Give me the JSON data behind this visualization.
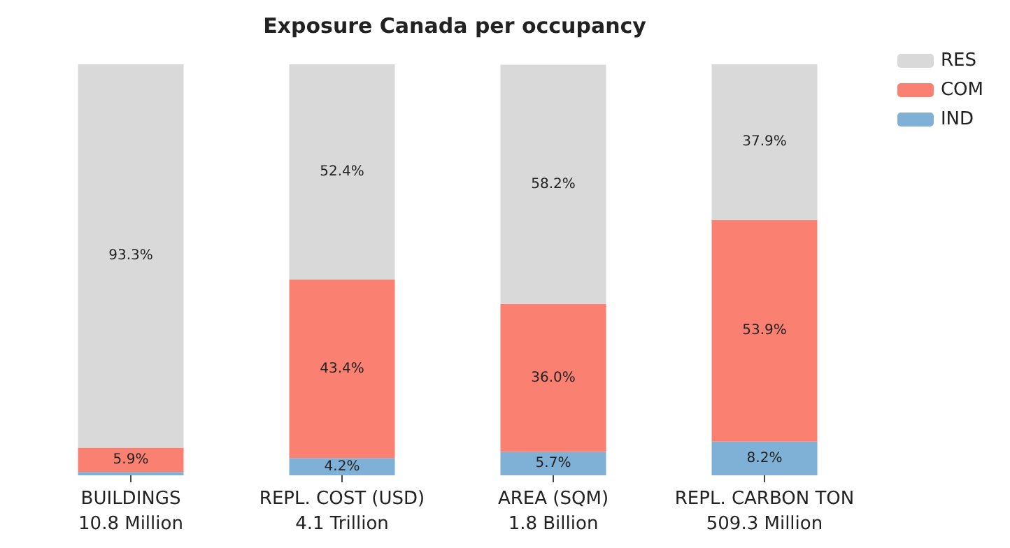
{
  "chart_data": {
    "type": "bar",
    "title": "Exposure Canada per occupancy",
    "stacked": true,
    "categories": [
      "BUILDINGS\n10.8 Million",
      "REPL. COST (USD)\n4.1 Trillion",
      "AREA (SQM)\n1.8 Billion",
      "REPL. CARBON TON\n509.3 Million"
    ],
    "series": [
      {
        "name": "IND",
        "color": "#7fb0d5",
        "values": [
          0.8,
          4.2,
          5.7,
          8.2
        ],
        "value_labels": [
          null,
          "4.2%",
          "5.7%",
          "8.2%"
        ]
      },
      {
        "name": "COM",
        "color": "#fa8072",
        "values": [
          5.9,
          43.4,
          36.0,
          53.9
        ],
        "value_labels": [
          "5.9%",
          "43.4%",
          "36.0%",
          "53.9%"
        ]
      },
      {
        "name": "RES",
        "color": "#d9d9d9",
        "values": [
          93.3,
          52.4,
          58.2,
          37.9
        ],
        "value_labels": [
          "93.3%",
          "52.4%",
          "58.2%",
          "37.9%"
        ]
      }
    ],
    "ylim": [
      0,
      100
    ],
    "tick_labels": "x",
    "legend": "top right"
  }
}
